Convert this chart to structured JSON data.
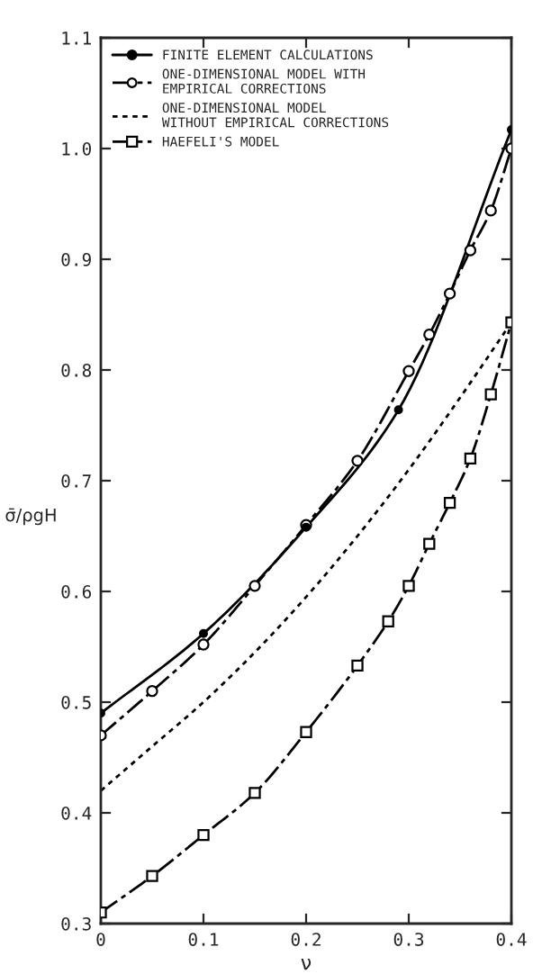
{
  "chart_data": {
    "type": "line",
    "xlabel": "ν",
    "ylabel": "σ̄/ρgH",
    "xlim": [
      0,
      0.4
    ],
    "ylim": [
      0.3,
      1.1
    ],
    "xticks": [
      0,
      0.1,
      0.2,
      0.3,
      0.4
    ],
    "yticks": [
      0.3,
      0.4,
      0.5,
      0.6,
      0.7,
      0.8,
      0.9,
      {
        "value": 1.0,
        "label": "1.0"
      },
      1.1
    ],
    "grid": false,
    "legend": "top left",
    "series": [
      {
        "name": "FINITE ELEMENT CALCULATIONS",
        "color": "#000000",
        "marker": "circle",
        "line_style": "solid",
        "x": [
          0,
          0.1,
          0.2,
          0.29,
          0.4
        ],
        "values": [
          0.49,
          0.562,
          0.658,
          0.764,
          1.017
        ]
      },
      {
        "name": "ONE-DIMENSIONAL MODEL WITH\nEMPIRICAL CORRECTIONS",
        "color": "#000000",
        "marker": "circle",
        "line_style": "dashdot",
        "x": [
          0,
          0.05,
          0.1,
          0.15,
          0.2,
          0.25,
          0.3,
          0.32,
          0.34,
          0.36,
          0.38,
          0.4
        ],
        "values": [
          0.47,
          0.51,
          0.552,
          0.605,
          0.66,
          0.718,
          0.799,
          0.832,
          0.869,
          0.908,
          0.944,
          1.0
        ]
      },
      {
        "name": "ONE-DIMENSIONAL MODEL\nWITHOUT EMPIRICAL CORRECTIONS",
        "color": "#000000",
        "marker": "none",
        "line_style": "dotted",
        "x": [
          0,
          0.05,
          0.1,
          0.15,
          0.2,
          0.25,
          0.3,
          0.35,
          0.4
        ],
        "values": [
          0.42,
          0.46,
          0.5,
          0.545,
          0.595,
          0.65,
          0.71,
          0.775,
          0.843
        ]
      },
      {
        "name": "HAEFELI'S MODEL",
        "color": "#000000",
        "marker": "square",
        "line_style": "dashdot",
        "x": [
          0,
          0.05,
          0.1,
          0.15,
          0.2,
          0.25,
          0.28,
          0.3,
          0.32,
          0.34,
          0.36,
          0.38,
          0.4
        ],
        "values": [
          0.31,
          0.343,
          0.38,
          0.418,
          0.473,
          0.533,
          0.573,
          0.605,
          0.643,
          0.68,
          0.72,
          0.778,
          0.843
        ]
      }
    ]
  }
}
